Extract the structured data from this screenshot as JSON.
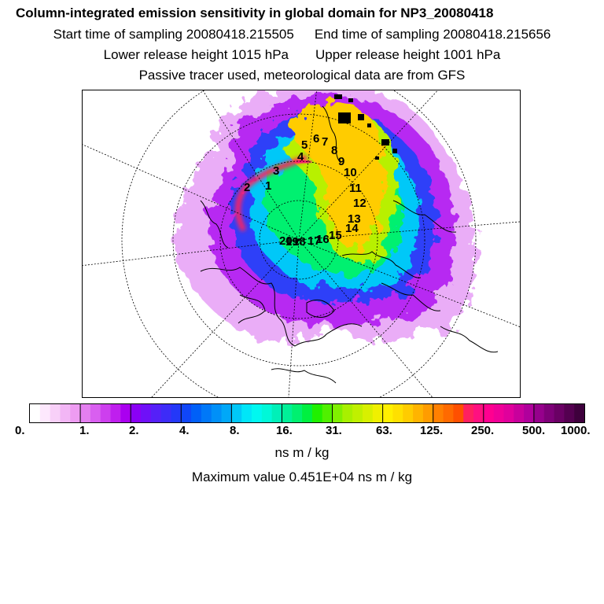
{
  "header": {
    "title": "Column-integrated emission sensitivity in global domain for NP3_20080418",
    "start_sampling": "Start time of sampling 20080418.215505",
    "end_sampling": "End time of sampling 20080418.215656",
    "lower_release": "Lower release height 1015 hPa",
    "upper_release": "Upper release height 1001 hPa",
    "tracer_note": "Passive tracer used, meteorological data are from GFS"
  },
  "map": {
    "projection": "north-polar-stereographic",
    "field": "column-integrated emission sensitivity",
    "trajectory_labels": [
      "1",
      "2",
      "3",
      "4",
      "5",
      "6",
      "7",
      "8",
      "9",
      "10",
      "11",
      "12",
      "13",
      "14",
      "15",
      "16",
      "17",
      "18",
      "19",
      "20"
    ]
  },
  "legend": {
    "tick_labels": [
      "0.",
      "1.",
      "2.",
      "4.",
      "8.",
      "16.",
      "31.",
      "63.",
      "125.",
      "250.",
      "500.",
      "1000."
    ],
    "units": "ns m / kg",
    "max_value": "Maximum value  0.451E+04 ns m / kg",
    "colors": [
      "#ffffff",
      "#fde8fd",
      "#f8d0f8",
      "#f2b6f5",
      "#ee9cf2",
      "#e47ff0",
      "#d95ff0",
      "#cd3fee",
      "#bf1fee",
      "#aa00f0",
      "#8a00f5",
      "#6f10f8",
      "#5520f8",
      "#3d2cf8",
      "#2438f8",
      "#1046f8",
      "#0060f8",
      "#0078f8",
      "#0090f8",
      "#00a8f8",
      "#00c8f8",
      "#00e6f8",
      "#00f8f0",
      "#00f8d8",
      "#00f0b8",
      "#00f098",
      "#00f070",
      "#00f040",
      "#20f000",
      "#50f000",
      "#80f000",
      "#a8f000",
      "#c0f000",
      "#d8f000",
      "#f0f000",
      "#fff000",
      "#ffe000",
      "#ffcc00",
      "#ffb400",
      "#ff9c00",
      "#ff8000",
      "#ff6a00",
      "#ff5000",
      "#ff2060",
      "#ff1080",
      "#ff0090",
      "#f00098",
      "#e0009c",
      "#c8009c",
      "#b0009c",
      "#96008c",
      "#7e0078",
      "#6a0064",
      "#540050",
      "#3e003c"
    ]
  }
}
